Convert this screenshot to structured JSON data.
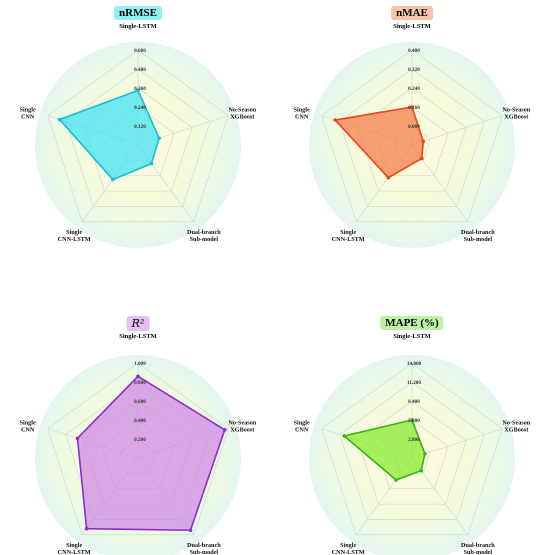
{
  "chart_data": [
    {
      "type": "radar",
      "title": "nRMSE",
      "title_bg": "#8ff0f5",
      "axes": [
        "Single-LSTM",
        "No-Season XGBoost",
        "Dual-branch Sub-model",
        "Single CNN-LSTM",
        "Single CNN"
      ],
      "axis_label_lines": [
        [
          "Single-LSTM"
        ],
        [
          "No-Season",
          "XGBoost"
        ],
        [
          "Dual-branch",
          "Sub-model"
        ],
        [
          "Single",
          "CNN-LSTM"
        ],
        [
          "Single",
          "CNN"
        ]
      ],
      "rlim": [
        0,
        0.6
      ],
      "ticks": [
        "0.600",
        "0.480",
        "0.360",
        "0.240",
        "0.120"
      ],
      "tick_values": [
        0.6,
        0.48,
        0.36,
        0.24,
        0.12
      ],
      "values": [
        0.345,
        0.14,
        0.145,
        0.27,
        0.52
      ],
      "color": "#14bedc",
      "fill": "#3de2f2"
    },
    {
      "type": "radar",
      "title": "nMAE",
      "title_bg": "#f7c6a9",
      "axes": [
        "Single-LSTM",
        "No-Season XGBoost",
        "Dual-branch Sub-model",
        "Single CNN-LSTM",
        "Single CNN"
      ],
      "axis_label_lines": [
        [
          "Single-LSTM"
        ],
        [
          "No-Season",
          "XGBoost"
        ],
        [
          "Dual-branch",
          "Sub-model"
        ],
        [
          "Single",
          "CNN-LSTM"
        ],
        [
          "Single",
          "CNN"
        ]
      ],
      "rlim": [
        0,
        0.4
      ],
      "ticks": [
        "0.400",
        "0.320",
        "0.240",
        "0.160",
        "0.080"
      ],
      "tick_values": [
        0.4,
        0.32,
        0.24,
        0.16,
        0.08
      ],
      "values": [
        0.16,
        0.05,
        0.07,
        0.17,
        0.34
      ],
      "color": "#e8461a",
      "fill": "#f47a46"
    },
    {
      "type": "radar",
      "title": "R²",
      "title_bg": "#e4bff0",
      "axes": [
        "Single-LSTM",
        "No-Season XGBoost",
        "Dual-branch Sub-model",
        "Single CNN-LSTM",
        "Single CNN"
      ],
      "axis_label_lines": [
        [
          "Single-LSTM"
        ],
        [
          "No-Season",
          "XGBoost"
        ],
        [
          "Dual-branch",
          "Sub-model"
        ],
        [
          "Single",
          "CNN-LSTM"
        ],
        [
          "Single",
          "CNN"
        ]
      ],
      "rlim": [
        0,
        1.0
      ],
      "ticks": [
        "1.000",
        "0.800",
        "0.600",
        "0.400",
        "0.200"
      ],
      "tick_values": [
        1.0,
        0.8,
        0.6,
        0.4,
        0.2
      ],
      "values": [
        0.86,
        0.96,
        0.94,
        0.92,
        0.67
      ],
      "color": "#8a2ecf",
      "fill": "#cf86e6"
    },
    {
      "type": "radar",
      "title": "MAPE (%)",
      "title_bg": "#bff0a8",
      "axes": [
        "Single-LSTM",
        "No-Season XGBoost",
        "Dual-branch Sub-model",
        "Single CNN-LSTM",
        "Single CNN"
      ],
      "axis_label_lines": [
        [
          "Single-LSTM"
        ],
        [
          "No-Season",
          "XGBoost"
        ],
        [
          "Dual-branch",
          "Sub-model"
        ],
        [
          "Single",
          "CNN-LSTM"
        ],
        [
          "Single",
          "CNN"
        ]
      ],
      "rlim": [
        0,
        14.0
      ],
      "ticks": [
        "14.000",
        "11.200",
        "8.400",
        "5.600",
        "2.800"
      ],
      "tick_values": [
        14.0,
        11.2,
        8.4,
        5.6,
        2.8
      ],
      "values": [
        5.6,
        2.0,
        2.3,
        4.0,
        10.5
      ],
      "color": "#3cb016",
      "fill": "#86ea2c"
    }
  ]
}
